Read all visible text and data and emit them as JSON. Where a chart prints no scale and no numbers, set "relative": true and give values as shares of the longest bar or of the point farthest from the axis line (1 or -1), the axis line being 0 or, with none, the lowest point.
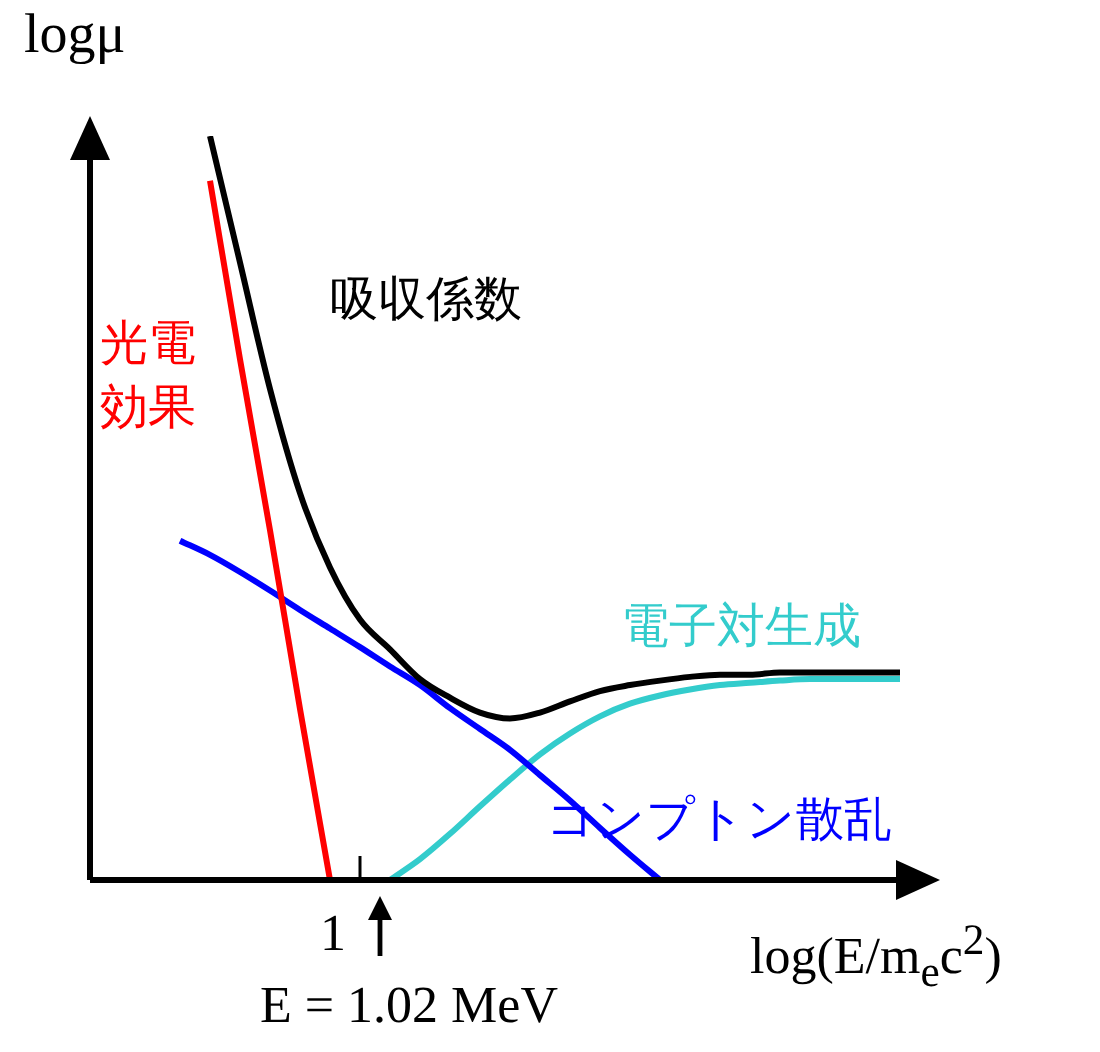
{
  "chart_data": {
    "type": "line",
    "relative": true,
    "ylabel": "logμ",
    "xlabel": "log(E/m$_{e}$c$^{2}$)",
    "categories": [
      null,
      null,
      null,
      null,
      null,
      null,
      null,
      null,
      null,
      null,
      null,
      null,
      null,
      null,
      null,
      null,
      null,
      null,
      null,
      null,
      null,
      null,
      null,
      null,
      null,
      null,
      null,
      null,
      null
    ],
    "annotations": [
      "1",
      "E = 1.02 MeV"
    ],
    "legend": false,
    "grid": false,
    "series": [
      {
        "name": "光電効果",
        "color": "#ff0000",
        "values": [
          null,
          null,
          null,
          null,
          0.94,
          0.7,
          0.47,
          0.23,
          0,
          null,
          null,
          null,
          null,
          null,
          null,
          null,
          null,
          null,
          null,
          null,
          null,
          null,
          null,
          null,
          null,
          null,
          null,
          null,
          null
        ]
      },
      {
        "name": "吸収係数",
        "color": "#000000",
        "values": [
          null,
          null,
          null,
          null,
          1.0,
          0.83,
          0.66,
          0.52,
          0.42,
          0.35,
          0.31,
          0.27,
          0.245,
          0.225,
          0.217,
          0.225,
          0.24,
          0.254,
          0.262,
          0.268,
          0.273,
          0.276,
          0.276,
          0.279,
          0.279,
          0.279,
          0.279,
          0.279,
          null
        ]
      },
      {
        "name": "コンプトン散乱",
        "color": "#0000ff",
        "values": [
          null,
          null,
          null,
          0.456,
          0.437,
          0.414,
          0.389,
          0.363,
          0.338,
          0.313,
          0.287,
          0.262,
          0.231,
          0.203,
          0.175,
          0.141,
          0.107,
          0.07,
          0.034,
          0,
          null,
          null,
          null,
          null,
          null,
          null,
          null,
          null,
          null
        ]
      },
      {
        "name": "電子対生成",
        "color": "#33cccc",
        "values": [
          null,
          null,
          null,
          null,
          null,
          null,
          null,
          null,
          null,
          null,
          0,
          0.028,
          0.062,
          0.099,
          0.135,
          0.169,
          0.197,
          0.22,
          0.237,
          0.248,
          0.256,
          0.262,
          0.265,
          0.268,
          0.27,
          0.27,
          0.27,
          0.27,
          null
        ]
      }
    ]
  }
}
